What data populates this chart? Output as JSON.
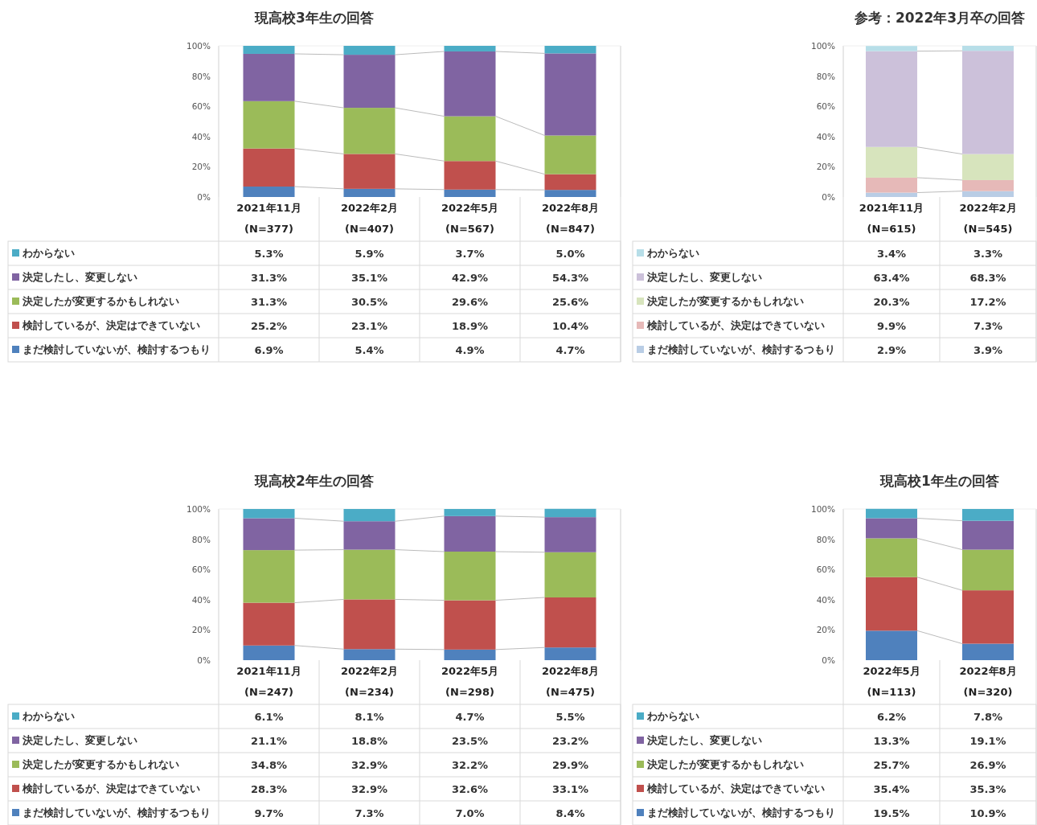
{
  "chart_data": [
    {
      "type": "bar",
      "stacked": true,
      "title": "現高校3年生の回答",
      "categories": [
        "2021年11月\n(N=377)",
        "2022年2月\n(N=407)",
        "2022年5月\n(N=567)",
        "2022年8月\n(N=847)"
      ],
      "ylim": [
        0,
        100
      ],
      "yticks": [
        {
          "value": 0,
          "label": "0%"
        },
        {
          "value": 20,
          "label": "20%"
        },
        {
          "value": 40,
          "label": "40%"
        },
        {
          "value": 60,
          "label": "60%"
        },
        {
          "value": 80,
          "label": "80%"
        },
        {
          "value": 100,
          "label": "100%"
        }
      ],
      "legend": "bottom",
      "series": [
        {
          "name": "まだ検討していないが、検討するつもり",
          "color": "#4f81bd",
          "values": [
            6.9,
            5.4,
            4.9,
            4.7
          ],
          "value_labels": [
            "6.9%",
            "5.4%",
            "4.9%",
            "4.7%"
          ]
        },
        {
          "name": "検討しているが、決定はできていない",
          "color": "#c0504d",
          "values": [
            25.2,
            23.1,
            18.9,
            10.4
          ],
          "value_labels": [
            "25.2%",
            "23.1%",
            "18.9%",
            "10.4%"
          ]
        },
        {
          "name": "決定したが変更するかもしれない",
          "color": "#9bbb59",
          "values": [
            31.3,
            30.5,
            29.6,
            25.6
          ],
          "value_labels": [
            "31.3%",
            "30.5%",
            "29.6%",
            "25.6%"
          ]
        },
        {
          "name": "決定したし、変更しない",
          "color": "#8064a2",
          "values": [
            31.3,
            35.1,
            42.9,
            54.3
          ],
          "value_labels": [
            "31.3%",
            "35.1%",
            "42.9%",
            "54.3%"
          ]
        },
        {
          "name": "わからない",
          "color": "#4bacc6",
          "values": [
            5.3,
            5.9,
            3.7,
            5.0
          ],
          "value_labels": [
            "5.3%",
            "5.9%",
            "3.7%",
            "5.0%"
          ]
        }
      ]
    },
    {
      "type": "bar",
      "stacked": true,
      "title": "参考：2022年3月卒の回答",
      "categories": [
        "2021年11月\n(N=615)",
        "2022年2月\n(N=545)"
      ],
      "ylim": [
        0,
        100
      ],
      "yticks": [
        {
          "value": 0,
          "label": "0%"
        },
        {
          "value": 20,
          "label": "20%"
        },
        {
          "value": 40,
          "label": "40%"
        },
        {
          "value": 60,
          "label": "60%"
        },
        {
          "value": 80,
          "label": "80%"
        },
        {
          "value": 100,
          "label": "100%"
        }
      ],
      "legend": "bottom",
      "series": [
        {
          "name": "まだ検討していないが、検討するつもり",
          "color": "#b9cde5",
          "values": [
            2.9,
            3.9
          ],
          "value_labels": [
            "2.9%",
            "3.9%"
          ]
        },
        {
          "name": "検討しているが、決定はできていない",
          "color": "#e6b9b8",
          "values": [
            9.9,
            7.3
          ],
          "value_labels": [
            "9.9%",
            "7.3%"
          ]
        },
        {
          "name": "決定したが変更するかもしれない",
          "color": "#d7e4bd",
          "values": [
            20.3,
            17.2
          ],
          "value_labels": [
            "20.3%",
            "17.2%"
          ]
        },
        {
          "name": "決定したし、変更しない",
          "color": "#ccc1da",
          "values": [
            63.4,
            68.3
          ],
          "value_labels": [
            "63.4%",
            "68.3%"
          ]
        },
        {
          "name": "わからない",
          "color": "#b7dee8",
          "values": [
            3.4,
            3.3
          ],
          "value_labels": [
            "3.4%",
            "3.3%"
          ]
        }
      ]
    },
    {
      "type": "bar",
      "stacked": true,
      "title": "現高校2年生の回答",
      "categories": [
        "2021年11月\n(N=247)",
        "2022年2月\n(N=234)",
        "2022年5月\n(N=298)",
        "2022年8月\n(N=475)"
      ],
      "ylim": [
        0,
        100
      ],
      "yticks": [
        {
          "value": 0,
          "label": "0%"
        },
        {
          "value": 20,
          "label": "20%"
        },
        {
          "value": 40,
          "label": "40%"
        },
        {
          "value": 60,
          "label": "60%"
        },
        {
          "value": 80,
          "label": "80%"
        },
        {
          "value": 100,
          "label": "100%"
        }
      ],
      "legend": "bottom",
      "series": [
        {
          "name": "まだ検討していないが、検討するつもり",
          "color": "#4f81bd",
          "values": [
            9.7,
            7.3,
            7.0,
            8.4
          ],
          "value_labels": [
            "9.7%",
            "7.3%",
            "7.0%",
            "8.4%"
          ]
        },
        {
          "name": "検討しているが、決定はできていない",
          "color": "#c0504d",
          "values": [
            28.3,
            32.9,
            32.6,
            33.1
          ],
          "value_labels": [
            "28.3%",
            "32.9%",
            "32.6%",
            "33.1%"
          ]
        },
        {
          "name": "決定したが変更するかもしれない",
          "color": "#9bbb59",
          "values": [
            34.8,
            32.9,
            32.2,
            29.9
          ],
          "value_labels": [
            "34.8%",
            "32.9%",
            "32.2%",
            "29.9%"
          ]
        },
        {
          "name": "決定したし、変更しない",
          "color": "#8064a2",
          "values": [
            21.1,
            18.8,
            23.5,
            23.2
          ],
          "value_labels": [
            "21.1%",
            "18.8%",
            "23.5%",
            "23.2%"
          ]
        },
        {
          "name": "わからない",
          "color": "#4bacc6",
          "values": [
            6.1,
            8.1,
            4.7,
            5.5
          ],
          "value_labels": [
            "6.1%",
            "8.1%",
            "4.7%",
            "5.5%"
          ]
        }
      ]
    },
    {
      "type": "bar",
      "stacked": true,
      "title": "現高校1年生の回答",
      "categories": [
        "2022年5月\n(N=113)",
        "2022年8月\n(N=320)"
      ],
      "ylim": [
        0,
        100
      ],
      "yticks": [
        {
          "value": 0,
          "label": "0%"
        },
        {
          "value": 20,
          "label": "20%"
        },
        {
          "value": 40,
          "label": "40%"
        },
        {
          "value": 60,
          "label": "60%"
        },
        {
          "value": 80,
          "label": "80%"
        },
        {
          "value": 100,
          "label": "100%"
        }
      ],
      "legend": "bottom",
      "series": [
        {
          "name": "まだ検討していないが、検討するつもり",
          "color": "#4f81bd",
          "values": [
            19.5,
            10.9
          ],
          "value_labels": [
            "19.5%",
            "10.9%"
          ]
        },
        {
          "name": "検討しているが、決定はできていない",
          "color": "#c0504d",
          "values": [
            35.4,
            35.3
          ],
          "value_labels": [
            "35.4%",
            "35.3%"
          ]
        },
        {
          "name": "決定したが変更するかもしれない",
          "color": "#9bbb59",
          "values": [
            25.7,
            26.9
          ],
          "value_labels": [
            "25.7%",
            "26.9%"
          ]
        },
        {
          "name": "決定したし、変更しない",
          "color": "#8064a2",
          "values": [
            13.3,
            19.1
          ],
          "value_labels": [
            "13.3%",
            "19.1%"
          ]
        },
        {
          "name": "わからない",
          "color": "#4bacc6",
          "values": [
            6.2,
            7.8
          ],
          "value_labels": [
            "6.2%",
            "7.8%"
          ]
        }
      ]
    }
  ]
}
